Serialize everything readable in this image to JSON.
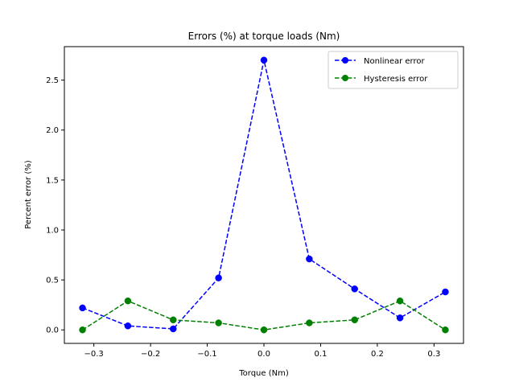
{
  "chart_data": {
    "type": "line",
    "title": "Errors (%) at torque loads (Nm)",
    "xlabel": "Torque (Nm)",
    "ylabel": "Percent error (%)",
    "xlim": [
      -0.352,
      0.352
    ],
    "ylim": [
      -0.135,
      2.835
    ],
    "xticks": [
      -0.3,
      -0.2,
      -0.1,
      0.0,
      0.1,
      0.2,
      0.3
    ],
    "xtick_labels": [
      "−0.3",
      "−0.2",
      "−0.1",
      "0.0",
      "0.1",
      "0.2",
      "0.3"
    ],
    "yticks": [
      0.0,
      0.5,
      1.0,
      1.5,
      2.0,
      2.5
    ],
    "ytick_labels": [
      "0.0",
      "0.5",
      "1.0",
      "1.5",
      "2.0",
      "2.5"
    ],
    "grid": false,
    "legend": "top-right",
    "x": [
      -0.32,
      -0.24,
      -0.16,
      -0.08,
      0.0,
      0.08,
      0.16,
      0.24,
      0.32
    ],
    "series": [
      {
        "name": "Nonlinear error",
        "color": "#0000ff",
        "line_style": "dashed",
        "marker": "circle",
        "values": [
          0.22,
          0.04,
          0.01,
          0.52,
          2.7,
          0.71,
          0.41,
          0.12,
          0.38
        ]
      },
      {
        "name": "Hysteresis error",
        "color": "#008000",
        "line_style": "dashed",
        "marker": "circle",
        "values": [
          0.0,
          0.29,
          0.1,
          0.07,
          0.0,
          0.07,
          0.1,
          0.29,
          0.0
        ]
      }
    ]
  }
}
